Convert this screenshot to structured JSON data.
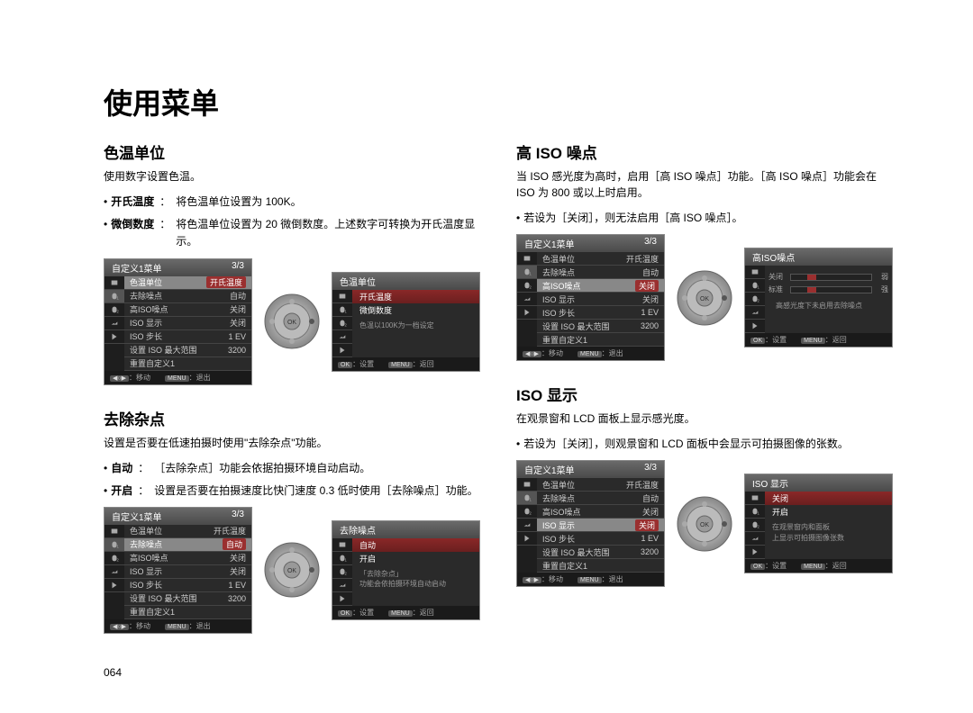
{
  "page_title": "使用菜单",
  "page_number": "064",
  "sections": {
    "s1": {
      "title": "色温单位",
      "intro": "使用数字设置色温。",
      "def1_term": "开氏温度",
      "def1_sep": "：",
      "def1_body": "将色温单位设置为 100K。",
      "def2_term": "微倒数度",
      "def2_sep": "：",
      "def2_body": "将色温单位设置为 20 微倒数度。上述数字可转换为开氏温度显示。"
    },
    "s2": {
      "title": "去除杂点",
      "intro": "设置是否要在低速拍摄时使用\"去除杂点\"功能。",
      "def1_term": "自动",
      "def1_sep": "：",
      "def1_body": "［去除杂点］功能会依据拍摄环境自动启动。",
      "def2_term": "开启",
      "def2_sep": "：",
      "def2_body": "设置是否要在拍摄速度比快门速度 0.3 低时使用［去除噪点］功能。"
    },
    "s3": {
      "title": "高 ISO 噪点",
      "intro": "当 ISO 感光度为高时，启用［高 ISO 噪点］功能。［高 ISO 噪点］功能会在 ISO 为 800 或以上时启用。",
      "note": "若设为［关闭］，则无法启用［高 ISO 噪点］。"
    },
    "s4": {
      "title": "ISO 显示",
      "intro": "在观景窗和 LCD 面板上显示感光度。",
      "note": "若设为［关闭］，则观景窗和 LCD 面板中会显示可拍摄图像的张数。"
    }
  },
  "screens": {
    "menu1": {
      "header_l": "自定义1菜单",
      "header_r": "3/3",
      "rows": [
        {
          "l": "色温单位",
          "r": "开氏温度",
          "a": 1
        },
        {
          "l": "去除噪点",
          "r": "自动"
        },
        {
          "l": "高ISO噪点",
          "r": "关闭"
        },
        {
          "l": "ISO 显示",
          "r": "关闭"
        },
        {
          "l": "ISO 步长",
          "r": "1 EV"
        },
        {
          "l": "设置 ISO 最大范围",
          "r": "3200"
        },
        {
          "l": "重置自定义1",
          "r": ""
        }
      ],
      "f1": "：移动",
      "f2": "：退出",
      "fb1": "◀○▶",
      "fb2": "MENU"
    },
    "detail1": {
      "header": "色温单位",
      "opts": [
        {
          "t": "开氏温度",
          "hl": 1
        },
        {
          "t": "微倒数度"
        }
      ],
      "desc": "色温以100K为一档设定",
      "f1": "：设置",
      "f2": "：返回",
      "fb1": "OK",
      "fb2": "MENU"
    },
    "menu2": {
      "header_l": "自定义1菜单",
      "header_r": "3/3",
      "rows": [
        {
          "l": "色温单位",
          "r": "开氏温度"
        },
        {
          "l": "去除噪点",
          "r": "自动",
          "a": 1
        },
        {
          "l": "高ISO噪点",
          "r": "关闭"
        },
        {
          "l": "ISO 显示",
          "r": "关闭"
        },
        {
          "l": "ISO 步长",
          "r": "1 EV"
        },
        {
          "l": "设置 ISO 最大范围",
          "r": "3200"
        },
        {
          "l": "重置自定义1",
          "r": ""
        }
      ],
      "f1": "：移动",
      "f2": "：退出",
      "fb1": "◀○▶",
      "fb2": "MENU"
    },
    "detail2": {
      "header": "去除噪点",
      "opts": [
        {
          "t": "自动",
          "hl": 1
        },
        {
          "t": "开启"
        }
      ],
      "desc": "「去除杂点」\n功能会依拍摄环境自动启动",
      "f1": "：设置",
      "f2": "：返回",
      "fb1": "OK",
      "fb2": "MENU"
    },
    "menu3": {
      "header_l": "自定义1菜单",
      "header_r": "3/3",
      "rows": [
        {
          "l": "色温单位",
          "r": "开氏温度"
        },
        {
          "l": "去除噪点",
          "r": "自动"
        },
        {
          "l": "高ISO噪点",
          "r": "关闭",
          "a": 1
        },
        {
          "l": "ISO 显示",
          "r": "关闭"
        },
        {
          "l": "ISO 步长",
          "r": "1 EV"
        },
        {
          "l": "设置 ISO 最大范围",
          "r": "3200"
        },
        {
          "l": "重置自定义1",
          "r": ""
        }
      ],
      "f1": "：移动",
      "f2": "：退出",
      "fb1": "◀○▶",
      "fb2": "MENU"
    },
    "detail3": {
      "header": "高ISO噪点",
      "bars": [
        {
          "l": "关闭",
          "r": "弱"
        },
        {
          "l": "标准",
          "r": "强"
        }
      ],
      "desc": "高感光度下未启用去除噪点",
      "f1": "：设置",
      "f2": "：返回",
      "fb1": "OK",
      "fb2": "MENU"
    },
    "menu4": {
      "header_l": "自定义1菜单",
      "header_r": "3/3",
      "rows": [
        {
          "l": "色温单位",
          "r": "开氏温度"
        },
        {
          "l": "去除噪点",
          "r": "自动"
        },
        {
          "l": "高ISO噪点",
          "r": "关闭"
        },
        {
          "l": "ISO 显示",
          "r": "关闭",
          "a": 1
        },
        {
          "l": "ISO 步长",
          "r": "1 EV"
        },
        {
          "l": "设置 ISO 最大范围",
          "r": "3200"
        },
        {
          "l": "重置自定义1",
          "r": ""
        }
      ],
      "f1": "：移动",
      "f2": "：退出",
      "fb1": "◀○▶",
      "fb2": "MENU"
    },
    "detail4": {
      "header": "ISO 显示",
      "opts": [
        {
          "t": "关闭",
          "hl": 1
        },
        {
          "t": "开启"
        }
      ],
      "desc": "在观景窗内和面板\n上显示可拍摄图像张数",
      "f1": "：设置",
      "f2": "：返回",
      "fb1": "OK",
      "fb2": "MENU"
    }
  },
  "colors": {
    "bg": "#ffffff",
    "screen_bg": "#2a2a2a",
    "header_grad": "#5a5a5a",
    "highlight": "#9a2f2f"
  }
}
